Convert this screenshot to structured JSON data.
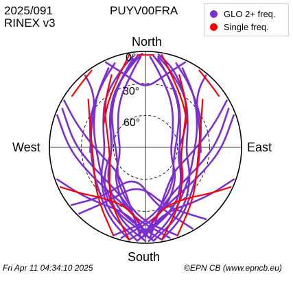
{
  "header": {
    "date": "2025/091",
    "format": "RINEX v3",
    "station": "PUYV00FRA"
  },
  "footer": {
    "timestamp": "Fri Apr 11 04:34:10 2025",
    "credit": "©EPN CB (www.epncb.eu)"
  },
  "chart_data": {
    "type": "scatter",
    "projection": "polar-skyplot",
    "directions": {
      "north": "North",
      "south": "South",
      "west": "West",
      "east": "East"
    },
    "ring_labels": [
      "0°",
      "30°",
      "60°"
    ],
    "elevation_rings": [
      0,
      30,
      60
    ],
    "azimuth_range": [
      0,
      360
    ],
    "grid": true,
    "legend_position": "top-right",
    "legend": [
      {
        "label": "GLO 2+ freq.",
        "color": "#7b2fd0"
      },
      {
        "label": "Single freq.",
        "color": "#ff0000"
      }
    ],
    "series": [
      {
        "name": "GLO 2+ freq.",
        "color": "#7b2fd0",
        "tracks": [
          [
            [
              175,
              2
            ],
            [
              215,
              25
            ],
            [
              240,
              45
            ],
            [
              270,
              60
            ],
            [
              305,
              48
            ],
            [
              330,
              30
            ],
            [
              350,
              12
            ],
            [
              358,
              2
            ]
          ],
          [
            [
              170,
              2
            ],
            [
              200,
              22
            ],
            [
              230,
              42
            ],
            [
              260,
              58
            ],
            [
              300,
              52
            ],
            [
              325,
              35
            ],
            [
              345,
              16
            ],
            [
              355,
              4
            ]
          ],
          [
            [
              185,
              2
            ],
            [
              210,
              20
            ],
            [
              235,
              38
            ],
            [
              265,
              52
            ],
            [
              295,
              46
            ],
            [
              320,
              30
            ],
            [
              342,
              14
            ],
            [
              352,
              4
            ]
          ],
          [
            [
              165,
              2
            ],
            [
              195,
              25
            ],
            [
              225,
              48
            ],
            [
              255,
              66
            ],
            [
              300,
              60
            ],
            [
              330,
              40
            ],
            [
              350,
              18
            ],
            [
              357,
              5
            ]
          ],
          [
            [
              160,
              2
            ],
            [
              185,
              22
            ],
            [
              215,
              45
            ],
            [
              250,
              62
            ],
            [
              290,
              58
            ],
            [
              320,
              40
            ],
            [
              342,
              20
            ],
            [
              352,
              6
            ]
          ],
          [
            [
              190,
              2
            ],
            [
              205,
              14
            ],
            [
              220,
              26
            ],
            [
              245,
              36
            ],
            [
              275,
              38
            ],
            [
              300,
              30
            ],
            [
              325,
              18
            ],
            [
              340,
              6
            ]
          ],
          [
            [
              180,
              2
            ],
            [
              195,
              15
            ],
            [
              210,
              28
            ],
            [
              235,
              40
            ],
            [
              265,
              44
            ],
            [
              290,
              38
            ],
            [
              315,
              24
            ],
            [
              335,
              8
            ]
          ],
          [
            [
              185,
              2
            ],
            [
              155,
              25
            ],
            [
              130,
              45
            ],
            [
              100,
              60
            ],
            [
              65,
              48
            ],
            [
              40,
              30
            ],
            [
              20,
              12
            ],
            [
              8,
              2
            ]
          ],
          [
            [
              190,
              2
            ],
            [
              160,
              22
            ],
            [
              130,
              42
            ],
            [
              100,
              58
            ],
            [
              60,
              52
            ],
            [
              35,
              35
            ],
            [
              15,
              16
            ],
            [
              5,
              4
            ]
          ],
          [
            [
              175,
              2
            ],
            [
              150,
              20
            ],
            [
              125,
              38
            ],
            [
              95,
              52
            ],
            [
              65,
              46
            ],
            [
              40,
              30
            ],
            [
              18,
              14
            ],
            [
              8,
              4
            ]
          ],
          [
            [
              195,
              2
            ],
            [
              165,
              25
            ],
            [
              135,
              48
            ],
            [
              105,
              66
            ],
            [
              60,
              60
            ],
            [
              30,
              40
            ],
            [
              10,
              18
            ],
            [
              3,
              5
            ]
          ],
          [
            [
              200,
              2
            ],
            [
              175,
              22
            ],
            [
              145,
              45
            ],
            [
              110,
              62
            ],
            [
              70,
              58
            ],
            [
              40,
              40
            ],
            [
              18,
              20
            ],
            [
              8,
              6
            ]
          ],
          [
            [
              170,
              2
            ],
            [
              155,
              14
            ],
            [
              140,
              26
            ],
            [
              115,
              36
            ],
            [
              85,
              38
            ],
            [
              60,
              30
            ],
            [
              35,
              18
            ],
            [
              20,
              6
            ]
          ],
          [
            [
              178,
              2
            ],
            [
              165,
              15
            ],
            [
              150,
              28
            ],
            [
              125,
              40
            ],
            [
              95,
              44
            ],
            [
              70,
              38
            ],
            [
              45,
              24
            ],
            [
              25,
              8
            ]
          ],
          [
            [
              290,
              2
            ],
            [
              270,
              18
            ],
            [
              250,
              30
            ],
            [
              225,
              36
            ],
            [
              200,
              32
            ],
            [
              185,
              20
            ],
            [
              178,
              5
            ]
          ],
          [
            [
              295,
              4
            ],
            [
              275,
              22
            ],
            [
              255,
              35
            ],
            [
              230,
              42
            ],
            [
              205,
              38
            ],
            [
              188,
              24
            ],
            [
              180,
              6
            ]
          ],
          [
            [
              70,
              2
            ],
            [
              90,
              18
            ],
            [
              110,
              30
            ],
            [
              135,
              36
            ],
            [
              160,
              32
            ],
            [
              175,
              20
            ],
            [
              182,
              5
            ]
          ],
          [
            [
              65,
              4
            ],
            [
              85,
              22
            ],
            [
              105,
              35
            ],
            [
              130,
              42
            ],
            [
              155,
              38
            ],
            [
              172,
              24
            ],
            [
              180,
              6
            ]
          ],
          [
            [
              300,
              2
            ],
            [
              290,
              20
            ],
            [
              275,
              38
            ],
            [
              255,
              50
            ],
            [
              230,
              55
            ],
            [
              205,
              45
            ],
            [
              190,
              25
            ],
            [
              183,
              5
            ]
          ],
          [
            [
              60,
              2
            ],
            [
              70,
              20
            ],
            [
              85,
              38
            ],
            [
              105,
              50
            ],
            [
              130,
              55
            ],
            [
              155,
              45
            ],
            [
              170,
              25
            ],
            [
              177,
              5
            ]
          ],
          [
            [
              250,
              2
            ],
            [
              235,
              14
            ],
            [
              220,
              22
            ],
            [
              205,
              26
            ],
            [
              190,
              22
            ],
            [
              183,
              10
            ]
          ],
          [
            [
              110,
              2
            ],
            [
              125,
              14
            ],
            [
              140,
              22
            ],
            [
              155,
              26
            ],
            [
              170,
              22
            ],
            [
              177,
              10
            ]
          ],
          [
            [
              320,
              2
            ],
            [
              318,
              15
            ],
            [
              310,
              28
            ],
            [
              290,
              36
            ],
            [
              265,
              38
            ]
          ],
          [
            [
              40,
              2
            ],
            [
              42,
              15
            ],
            [
              50,
              28
            ],
            [
              70,
              36
            ],
            [
              95,
              38
            ]
          ],
          [
            [
              335,
              2
            ],
            [
              345,
              20
            ],
            [
              0,
              35
            ],
            [
              15,
              20
            ],
            [
              25,
              2
            ]
          ],
          [
            [
              140,
              2
            ],
            [
              160,
              30
            ],
            [
              190,
              55
            ],
            [
              215,
              28
            ],
            [
              225,
              2
            ]
          ],
          [
            [
              150,
              2
            ],
            [
              170,
              35
            ],
            [
              200,
              62
            ],
            [
              220,
              30
            ],
            [
              232,
              2
            ]
          ]
        ]
      },
      {
        "name": "Single freq.",
        "color": "#ff0000",
        "tracks": [
          [
            [
              350,
              2
            ],
            [
              340,
              18
            ],
            [
              320,
              35
            ],
            [
              300,
              45
            ]
          ],
          [
            [
              10,
              2
            ],
            [
              20,
              18
            ],
            [
              40,
              35
            ],
            [
              60,
              45
            ]
          ],
          [
            [
              190,
              2
            ],
            [
              215,
              30
            ],
            [
              250,
              55
            ],
            [
              290,
              52
            ],
            [
              315,
              35
            ],
            [
              335,
              15
            ]
          ],
          [
            [
              170,
              2
            ],
            [
              145,
              30
            ],
            [
              110,
              55
            ],
            [
              70,
              52
            ],
            [
              45,
              35
            ],
            [
              25,
              15
            ]
          ],
          [
            [
              200,
              2
            ],
            [
              225,
              25
            ],
            [
              260,
              40
            ],
            [
              290,
              35
            ],
            [
              310,
              20
            ]
          ],
          [
            [
              160,
              2
            ],
            [
              135,
              25
            ],
            [
              100,
              40
            ],
            [
              70,
              35
            ],
            [
              50,
              20
            ]
          ],
          [
            [
              245,
              2
            ],
            [
              235,
              15
            ],
            [
              220,
              28
            ],
            [
              200,
              32
            ],
            [
              185,
              20
            ]
          ],
          [
            [
              115,
              2
            ],
            [
              125,
              15
            ],
            [
              140,
              28
            ],
            [
              160,
              32
            ],
            [
              175,
              20
            ]
          ],
          [
            [
              355,
              3
            ],
            [
              5,
              3
            ]
          ],
          [
            [
              325,
              2
            ],
            [
              315,
              5
            ],
            [
              305,
              6
            ]
          ],
          [
            [
              35,
              2
            ],
            [
              45,
              5
            ],
            [
              55,
              6
            ]
          ]
        ]
      }
    ]
  }
}
